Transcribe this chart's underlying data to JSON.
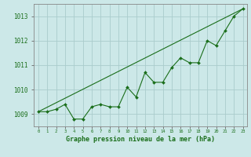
{
  "title": "Graphe pression niveau de la mer (hPa)",
  "background_color": "#cce8e8",
  "grid_color": "#aacccc",
  "line_color": "#1a6e1a",
  "x_data": [
    0,
    1,
    2,
    3,
    4,
    5,
    6,
    7,
    8,
    9,
    10,
    11,
    12,
    13,
    14,
    15,
    16,
    17,
    18,
    19,
    20,
    21,
    22,
    23
  ],
  "y_data": [
    1009.1,
    1009.1,
    1009.2,
    1009.4,
    1008.8,
    1008.8,
    1009.3,
    1009.4,
    1009.3,
    1009.3,
    1010.1,
    1009.7,
    1010.7,
    1010.3,
    1010.3,
    1010.9,
    1011.3,
    1011.1,
    1011.1,
    1012.0,
    1011.8,
    1012.4,
    1013.0,
    1013.3
  ],
  "trend_x": [
    0,
    23
  ],
  "trend_y": [
    1009.1,
    1013.3
  ],
  "ylim": [
    1008.5,
    1013.5
  ],
  "xlim": [
    -0.5,
    23.5
  ],
  "yticks": [
    1009,
    1010,
    1011,
    1012,
    1013
  ],
  "xticks": [
    0,
    1,
    2,
    3,
    4,
    5,
    6,
    7,
    8,
    9,
    10,
    11,
    12,
    13,
    14,
    15,
    16,
    17,
    18,
    19,
    20,
    21,
    22,
    23
  ],
  "xtick_labels": [
    "0",
    "1",
    "2",
    "3",
    "4",
    "5",
    "6",
    "7",
    "8",
    "9",
    "10",
    "11",
    "12",
    "13",
    "14",
    "15",
    "16",
    "17",
    "18",
    "19",
    "20",
    "21",
    "22",
    "23"
  ]
}
